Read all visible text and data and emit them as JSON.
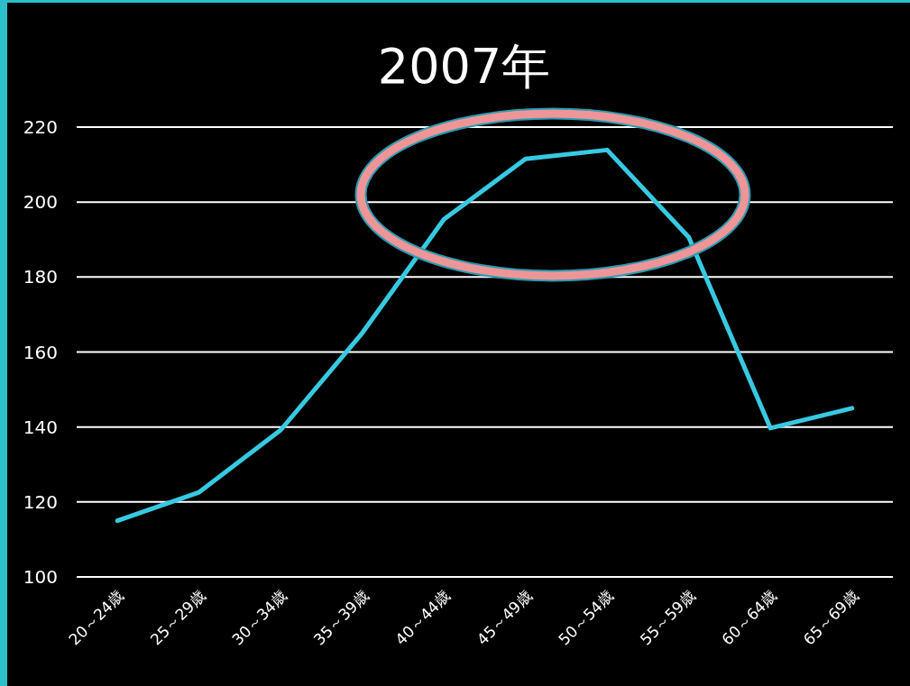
{
  "chart_data": {
    "type": "line",
    "title": "2007年",
    "categories": [
      "20～24歳",
      "25～29歳",
      "30～34歳",
      "35～39歳",
      "40～44歳",
      "45～49歳",
      "50～54歳",
      "55～59歳",
      "60～64歳",
      "65～69歳"
    ],
    "series": [
      {
        "color": "#38c9e2",
        "values": [
          115,
          122.6,
          139.2,
          165.1,
          195.4,
          211.5,
          213.9,
          190.6,
          139.7,
          145.0
        ]
      }
    ],
    "ylim": [
      100,
      220
    ],
    "yticks": [
      100,
      120,
      140,
      160,
      180,
      200,
      220
    ],
    "grid": "y",
    "line_style": "solid",
    "marker": "none"
  }
}
